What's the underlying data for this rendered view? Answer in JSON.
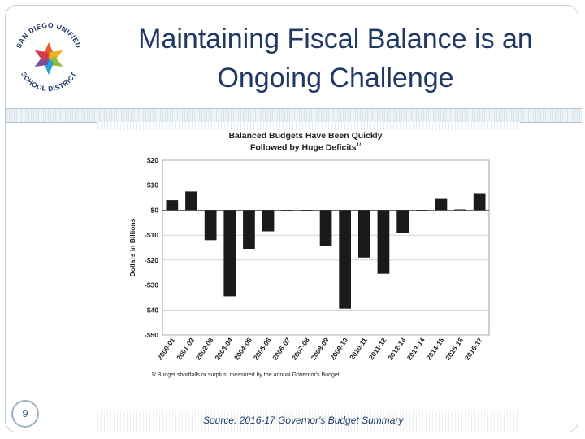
{
  "slide": {
    "title_line1": "Maintaining Fiscal Balance is an",
    "title_line2": "Ongoing Challenge",
    "page_number": "9",
    "source": "Source: 2016-17 Governor's Budget Summary"
  },
  "logo": {
    "text": "SAN DIEGO UNIFIED SCHOOL DISTRICT",
    "colors": [
      "#e85a2a",
      "#f3b21b",
      "#8fbf3a",
      "#2f9fd8",
      "#7a4d9e",
      "#d33a4b"
    ],
    "text_color": "#1f3864"
  },
  "chart_data": {
    "type": "bar",
    "title_line1": "Balanced Budgets Have Been Quickly",
    "title_line2": "Followed by Huge Deficits",
    "title_footnote": "1/",
    "ylabel": "Dollars in Billions",
    "xlabel": "",
    "ylim": [
      -50,
      20
    ],
    "yticks": [
      20,
      10,
      0,
      -10,
      -20,
      -30,
      -40,
      -50
    ],
    "ytick_labels": [
      "$20",
      "$10",
      "$0",
      "-$10",
      "-$20",
      "-$30",
      "-$40",
      "-$50"
    ],
    "grid": true,
    "categories": [
      "2000-01",
      "2001-02",
      "2002-03",
      "2003-04",
      "2004-05",
      "2005-06",
      "2006-07",
      "2007-08",
      "2008-09",
      "2009-10",
      "2010-11",
      "2011-12",
      "2012-13",
      "2013-14",
      "2014-15",
      "2015-16",
      "2016-17"
    ],
    "values": [
      4,
      7.5,
      -12,
      -34.5,
      -15.5,
      -8.5,
      0,
      0,
      -14.5,
      -39.5,
      -19,
      -25.5,
      -9,
      0,
      4.5,
      0.3,
      6.5
    ],
    "footnote": "1/ Budget shortfalls or surplus, measured by the annual Governor's Budget.",
    "bar_color": "#1a1a1a"
  }
}
